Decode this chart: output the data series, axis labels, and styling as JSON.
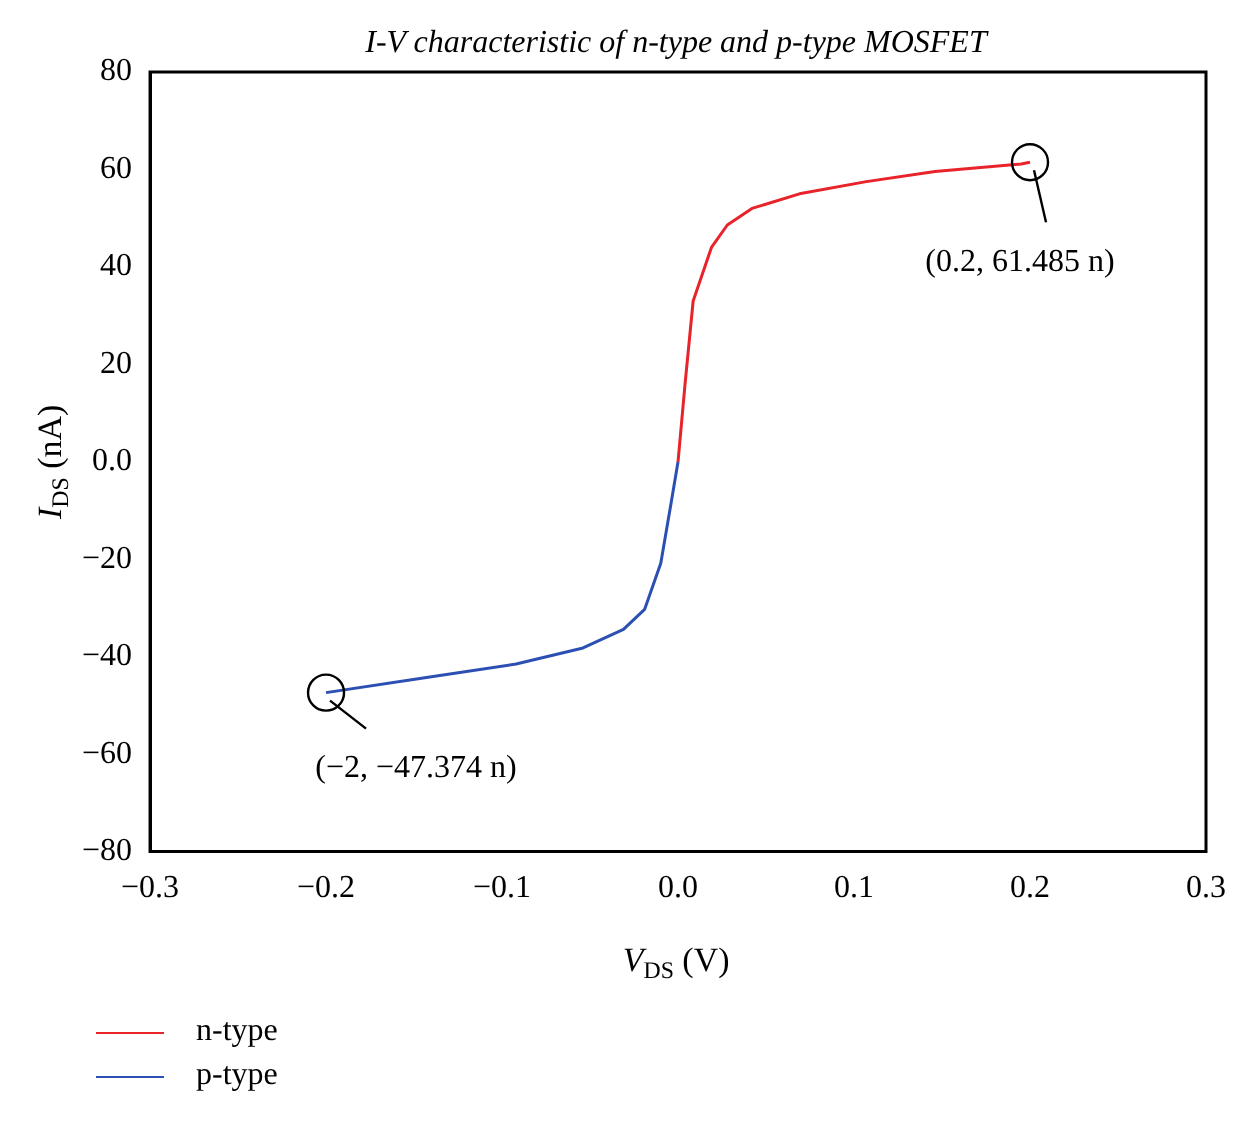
{
  "chart_data": {
    "type": "line",
    "title": "I-V characteristic of n-type and p-type MOSFET",
    "xlabel": "V$_{DS}$ (V)",
    "ylabel": "I$_{DS}$ (nA)",
    "series": [
      {
        "name": "n-type",
        "color": "#e8232a",
        "x": [
          0,
          0.004,
          0.0086,
          0.019,
          0.028,
          0.042,
          0.069,
          0.107,
          0.146,
          0.195,
          0.2
        ],
        "values": [
          0,
          16,
          33,
          44,
          48.6,
          52,
          55,
          57.5,
          59.6,
          61.1,
          61.485
        ]
      },
      {
        "name": "p-type",
        "color": "#2c4fb4",
        "x": [
          0,
          -0.004,
          -0.0098,
          -0.019,
          -0.031,
          -0.054,
          -0.092,
          -0.142,
          -0.2
        ],
        "values": [
          0,
          -8.6,
          -20.8,
          -30.3,
          -34.4,
          -38.2,
          -41.5,
          -44.2,
          -47.374
        ]
      }
    ],
    "xlim": [
      -0.3,
      0.3
    ],
    "xticks": [
      -0.3,
      -0.2,
      -0.1,
      {
        "value": 0,
        "label": "0.0"
      },
      0.1,
      0.2,
      0.3
    ],
    "ylim": [
      -80,
      80
    ],
    "yticks": [
      -80,
      -60,
      -40,
      -20,
      {
        "value": 0,
        "label": "0.0"
      },
      20,
      40,
      60,
      80
    ],
    "annotations": [
      {
        "text": "(0.2, 61.485 n)",
        "x": 0.2,
        "y": 61.485
      },
      {
        "text": "(−2, −47.374 n)",
        "x": -0.2,
        "y": -47.374
      }
    ],
    "grid": false,
    "legend": "bottom left",
    "marker": "none",
    "line_style": "solid"
  }
}
